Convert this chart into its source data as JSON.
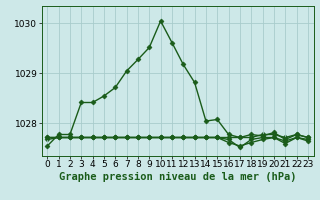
{
  "title": "Graphe pression niveau de la mer (hPa)",
  "background_color": "#cde8e8",
  "grid_color": "#a8cccc",
  "line_color": "#1a5c1a",
  "xlim": [
    -0.5,
    23.5
  ],
  "ylim": [
    1027.35,
    1030.35
  ],
  "yticks": [
    1028,
    1029,
    1030
  ],
  "xticks": [
    0,
    1,
    2,
    3,
    4,
    5,
    6,
    7,
    8,
    9,
    10,
    11,
    12,
    13,
    14,
    15,
    16,
    17,
    18,
    19,
    20,
    21,
    22,
    23
  ],
  "series_main": [
    1027.55,
    1027.78,
    1027.78,
    1028.42,
    1028.42,
    1028.55,
    1028.72,
    1029.05,
    1029.28,
    1029.52,
    1030.05,
    1029.62,
    1029.18,
    1028.82,
    1028.05,
    1028.08,
    1027.78,
    1027.72,
    1027.78,
    1027.75,
    1027.82,
    1027.68,
    1027.78,
    1027.72
  ],
  "series_flat1": [
    1027.72,
    1027.72,
    1027.72,
    1027.72,
    1027.72,
    1027.72,
    1027.72,
    1027.72,
    1027.72,
    1027.72,
    1027.72,
    1027.72,
    1027.72,
    1027.72,
    1027.72,
    1027.72,
    1027.62,
    1027.55,
    1027.62,
    1027.68,
    1027.72,
    1027.65,
    1027.72,
    1027.65
  ],
  "series_flat2": [
    1027.72,
    1027.72,
    1027.72,
    1027.72,
    1027.72,
    1027.72,
    1027.72,
    1027.72,
    1027.72,
    1027.72,
    1027.72,
    1027.72,
    1027.72,
    1027.72,
    1027.72,
    1027.72,
    1027.68,
    1027.52,
    1027.68,
    1027.72,
    1027.72,
    1027.6,
    1027.72,
    1027.68
  ],
  "series_flat3": [
    1027.68,
    1027.72,
    1027.72,
    1027.72,
    1027.72,
    1027.72,
    1027.72,
    1027.72,
    1027.72,
    1027.72,
    1027.72,
    1027.72,
    1027.72,
    1027.72,
    1027.72,
    1027.72,
    1027.72,
    1027.72,
    1027.72,
    1027.78,
    1027.78,
    1027.72,
    1027.78,
    1027.72
  ],
  "marker": "D",
  "markersize": 2.5,
  "linewidth": 1.0,
  "tick_fontsize": 6.5,
  "xlabel_fontsize": 7.5
}
